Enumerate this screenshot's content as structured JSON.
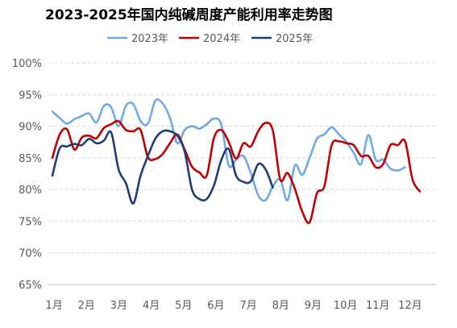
{
  "chart_data": {
    "type": "line",
    "title": "2023-2025年国内纯碱周度产能利用率走势图",
    "xlabel": "",
    "ylabel": "",
    "ylim": [
      65,
      100
    ],
    "y_ticks": [
      "65%",
      "70%",
      "75%",
      "80%",
      "85%",
      "90%",
      "95%",
      "100%"
    ],
    "y_tick_values": [
      65,
      70,
      75,
      80,
      85,
      90,
      95,
      100
    ],
    "x_ticks": [
      "1月",
      "2月",
      "3月",
      "4月",
      "5月",
      "6月",
      "7月",
      "8月",
      "9月",
      "10月",
      "11月",
      "12月"
    ],
    "grid": "horizontal-dashed",
    "legend_position": "top",
    "series": [
      {
        "name": "2023年",
        "color": "#6fa8eb",
        "values": [
          92.3,
          91.3,
          90.4,
          91.1,
          91.6,
          92.0,
          90.6,
          93.2,
          93.0,
          90.0,
          93.2,
          93.5,
          90.8,
          90.4,
          94.0,
          93.6,
          91.3,
          87.3,
          89.4,
          90.0,
          89.6,
          90.3,
          91.2,
          90.2,
          83.8,
          84.7,
          85.3,
          82.6,
          79.1,
          78.3,
          80.5,
          81.6,
          78.3,
          83.8,
          82.3,
          85.0,
          88.0,
          88.7,
          89.8,
          88.7,
          87.5,
          85.8,
          84.0,
          88.6,
          84.7,
          84.7,
          83.3,
          83.0,
          83.5
        ]
      },
      {
        "name": "2024年",
        "color": "#c00000",
        "values": [
          85.0,
          88.7,
          89.5,
          86.3,
          88.2,
          88.5,
          88.1,
          89.7,
          90.3,
          90.8,
          89.4,
          89.2,
          89.4,
          85.1,
          84.8,
          85.6,
          87.3,
          88.7,
          86.3,
          83.6,
          82.7,
          82.2,
          88.2,
          89.4,
          87.5,
          84.9,
          87.3,
          86.8,
          89.2,
          90.5,
          89.3,
          81.6,
          82.6,
          80.1,
          76.5,
          74.8,
          79.4,
          80.5,
          87.0,
          87.6,
          87.3,
          87.0,
          85.3,
          85.3,
          83.5,
          84.0,
          87.0,
          87.0,
          87.6,
          81.6,
          79.7
        ]
      },
      {
        "name": "2025年",
        "color": "#1f3c78",
        "values": [
          82.2,
          86.5,
          86.8,
          87.2,
          87.0,
          88.0,
          87.3,
          87.7,
          89.0,
          83.2,
          81.0,
          77.8,
          82.2,
          85.3,
          88.0,
          89.2,
          89.2,
          88.5,
          86.0,
          80.0,
          78.5,
          78.5,
          80.7,
          84.7,
          86.4,
          82.2,
          81.2,
          81.3,
          84.0,
          83.2,
          80.3
        ]
      }
    ]
  }
}
